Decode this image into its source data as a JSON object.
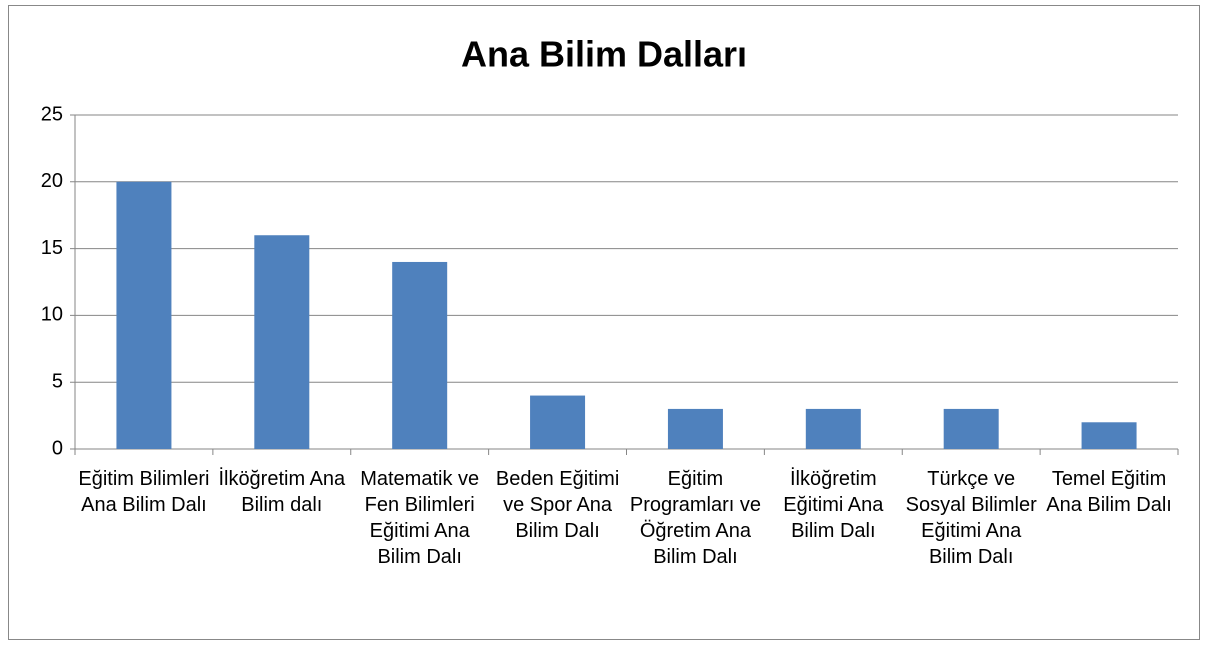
{
  "chart_data": {
    "type": "bar",
    "title": "Ana Bilim Dalları",
    "categories": [
      "Eğitim Bilimleri Ana Bilim Dalı",
      "İlköğretim Ana Bilim dalı",
      "Matematik ve Fen Bilimleri Eğitimi Ana Bilim Dalı",
      "Beden Eğitimi ve Spor Ana Bilim Dalı",
      "Eğitim Programları ve Öğretim Ana Bilim Dalı",
      "İlköğretim Eğitimi Ana Bilim Dalı",
      "Türkçe ve Sosyal Bilimler Eğitimi Ana Bilim Dalı",
      "Temel Eğitim Ana Bilim Dalı"
    ],
    "values": [
      20,
      16,
      14,
      4,
      3,
      3,
      3,
      2
    ],
    "color": "#4f81bd",
    "ylim": [
      0,
      25
    ],
    "yticks": [
      0,
      5,
      10,
      15,
      20,
      25
    ],
    "grid": true
  }
}
